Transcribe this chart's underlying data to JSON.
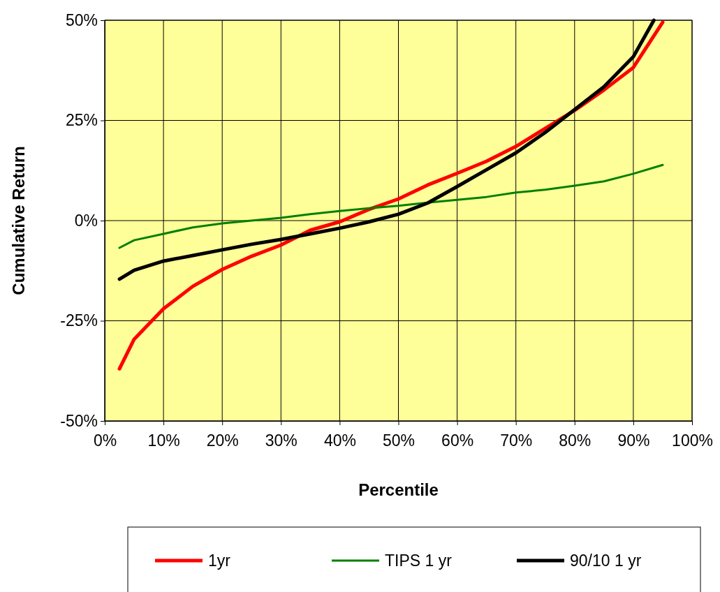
{
  "chart_data": {
    "type": "line",
    "xlabel": "Percentile",
    "ylabel": "Cumulative Return",
    "xlim": [
      0,
      100
    ],
    "ylim": [
      -50,
      50
    ],
    "xticks": [
      {
        "value": 0,
        "label": "0%"
      },
      {
        "value": 10,
        "label": "10%"
      },
      {
        "value": 20,
        "label": "20%"
      },
      {
        "value": 30,
        "label": "30%"
      },
      {
        "value": 40,
        "label": "40%"
      },
      {
        "value": 50,
        "label": "50%"
      },
      {
        "value": 60,
        "label": "60%"
      },
      {
        "value": 70,
        "label": "70%"
      },
      {
        "value": 80,
        "label": "80%"
      },
      {
        "value": 90,
        "label": "90%"
      },
      {
        "value": 100,
        "label": "100%"
      }
    ],
    "yticks": [
      {
        "value": -50,
        "label": "-50%"
      },
      {
        "value": -25,
        "label": "-25%"
      },
      {
        "value": 0,
        "label": "0%"
      },
      {
        "value": 25,
        "label": "25%"
      },
      {
        "value": 50,
        "label": "50%"
      }
    ],
    "grid": true,
    "legend": "bottom",
    "marker": "none",
    "line_style": "solid",
    "series": [
      {
        "name": "1yr",
        "color": "#ff0000",
        "x": [
          2.5,
          5,
          10,
          15,
          20,
          25,
          30,
          35,
          40,
          45,
          50,
          55,
          60,
          65,
          70,
          75,
          80,
          85,
          90,
          95
        ],
        "values": [
          -37,
          -29.6,
          -22,
          -16.4,
          -12.2,
          -8.9,
          -6.1,
          -2.4,
          -0.3,
          2.8,
          5.4,
          8.9,
          11.8,
          14.8,
          18.5,
          23,
          27.5,
          32.6,
          38.2,
          49.5
        ]
      },
      {
        "name": "TIPS 1 yr",
        "color": "#008000",
        "x": [
          2.5,
          5,
          10,
          15,
          20,
          25,
          30,
          35,
          40,
          45,
          50,
          55,
          60,
          65,
          70,
          75,
          80,
          85,
          90,
          95
        ],
        "values": [
          -6.8,
          -4.9,
          -3.3,
          -1.7,
          -0.7,
          0,
          0.7,
          1.6,
          2.4,
          3.1,
          3.7,
          4.5,
          5.2,
          5.9,
          7,
          7.7,
          8.7,
          9.8,
          11.7,
          13.9
        ]
      },
      {
        "name": "90/10 1 yr",
        "color": "#000000",
        "x": [
          2.5,
          5,
          10,
          15,
          20,
          25,
          30,
          35,
          40,
          45,
          50,
          55,
          60,
          65,
          70,
          75,
          80,
          85,
          90,
          93.5
        ],
        "values": [
          -14.6,
          -12.4,
          -10.1,
          -8.7,
          -7.3,
          -5.9,
          -4.7,
          -3.3,
          -1.9,
          -0.3,
          1.6,
          4.4,
          8.5,
          12.7,
          16.9,
          22,
          27.7,
          33.4,
          40.9,
          50
        ]
      }
    ]
  }
}
